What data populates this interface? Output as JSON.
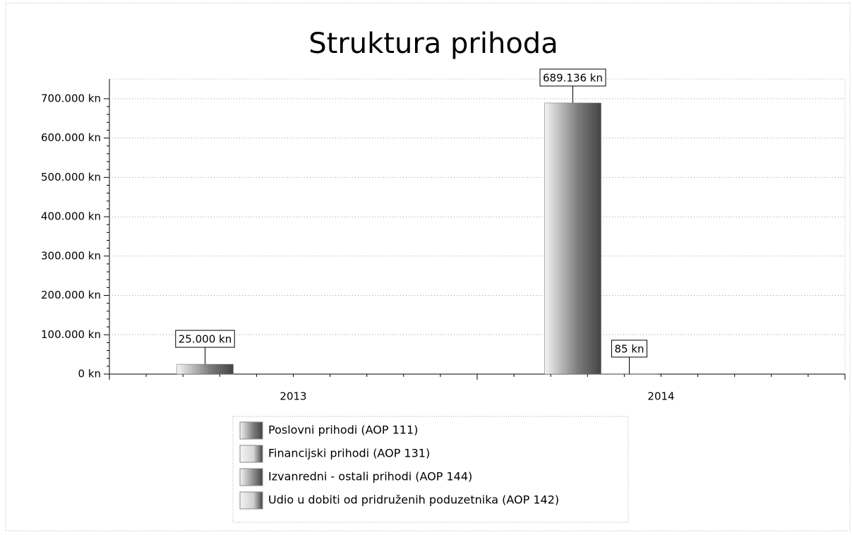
{
  "chart_data": {
    "type": "bar",
    "title": "Struktura prihoda",
    "categories": [
      "2013",
      "2014"
    ],
    "series": [
      {
        "name": "Poslovni prihodi (AOP 111)",
        "color": "#7a7a7a",
        "values": [
          25000,
          689136
        ],
        "value_labels": [
          "25.000 kn",
          "689.136 kn"
        ]
      },
      {
        "name": "Financijski prihodi (AOP 131)",
        "color": "#d6d6d6",
        "values": [
          0,
          85
        ],
        "value_labels": [
          null,
          "85 kn"
        ]
      },
      {
        "name": "Izvanredni - ostali prihodi (AOP 144)",
        "color": "#8c8c8c",
        "values": [
          0,
          0
        ],
        "value_labels": [
          null,
          null
        ]
      },
      {
        "name": "Udio u dobiti od pridruženih poduzetnika (AOP 142)",
        "color": "#cfcfcf",
        "values": [
          0,
          0
        ],
        "value_labels": [
          null,
          null
        ]
      }
    ],
    "ylim": [
      0,
      750000
    ],
    "yticks": [
      {
        "value": 0,
        "label": "0 kn"
      },
      {
        "value": 100000,
        "label": "100.000 kn"
      },
      {
        "value": 200000,
        "label": "200.000 kn"
      },
      {
        "value": 300000,
        "label": "300.000 kn"
      },
      {
        "value": 400000,
        "label": "400.000 kn"
      },
      {
        "value": 500000,
        "label": "500.000 kn"
      },
      {
        "value": 600000,
        "label": "600.000 kn"
      },
      {
        "value": 700000,
        "label": "700.000 kn"
      }
    ],
    "grid": true
  }
}
